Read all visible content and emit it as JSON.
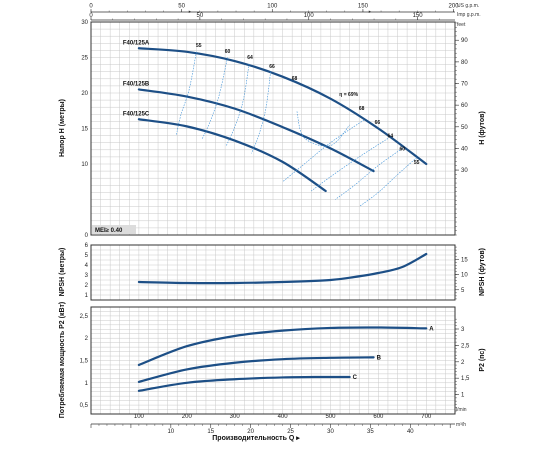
{
  "units": {
    "top_us": "US g.p.m.",
    "top_imp": "Imp g.p.m.",
    "top_feet": "feet",
    "bottom_lmin": "l/min",
    "bottom_m3h": "m³/h"
  },
  "axis_titles": {
    "h_left": "Напор H (метры)",
    "h_right": "H (футов)",
    "npsh_left": "NPSH (метры)",
    "npsh_right": "NPSH (футов)",
    "p2_left": "Потребляемая мощность P2 (кВт)",
    "p2_right": "P2 (пс)",
    "x_bottom": "Производительность Q"
  },
  "mei_label": "MEI≥ 0.40",
  "eta_label": "η = 69%",
  "ticks": {
    "us_gpm": [
      "0",
      "50",
      "100",
      "150",
      "200"
    ],
    "imp_gpm": [
      "0",
      "50",
      "100",
      "150"
    ],
    "lmin": [
      "100",
      "200",
      "300",
      "400",
      "500",
      "600",
      "700"
    ],
    "m3h": [
      "10",
      "15",
      "20",
      "25",
      "30",
      "35",
      "40"
    ],
    "h_m": [
      "10",
      "15",
      "20",
      "25",
      "30"
    ],
    "h_ft": [
      "30",
      "40",
      "50",
      "60",
      "70",
      "80",
      "90"
    ],
    "npsh_m": [
      "1",
      "2",
      "3",
      "4",
      "5",
      "6"
    ],
    "npsh_ft": [
      "5",
      "10",
      "15"
    ],
    "p2_kw": [
      "0,5",
      "1",
      "1,5",
      "2",
      "2,5"
    ],
    "p2_hp": [
      "1",
      "1,5",
      "2",
      "2,5",
      "3"
    ]
  },
  "chart_data": [
    {
      "type": "line",
      "x_unit": "l/min",
      "xlim": [
        0,
        760
      ],
      "ylim": [
        0,
        30
      ],
      "grid": true,
      "series": [
        {
          "name": "F40/125A",
          "x": [
            100,
            200,
            300,
            400,
            500,
            600,
            700
          ],
          "y": [
            26.3,
            25.8,
            24.5,
            22.3,
            19.2,
            15.0,
            10.0
          ]
        },
        {
          "name": "F40/125B",
          "x": [
            100,
            200,
            300,
            400,
            500,
            590
          ],
          "y": [
            20.5,
            19.5,
            17.8,
            15.2,
            12.2,
            9.0
          ]
        },
        {
          "name": "F40/125C",
          "x": [
            100,
            200,
            300,
            400,
            490
          ],
          "y": [
            16.3,
            15.3,
            13.3,
            10.3,
            6.2
          ]
        }
      ],
      "efficiency_labels": [
        "55",
        "60",
        "64",
        "66",
        "68",
        "η = 69%",
        "68",
        "66",
        "64",
        "60",
        "55"
      ]
    },
    {
      "type": "line",
      "x_unit": "l/min",
      "xlim": [
        0,
        760
      ],
      "ylim": [
        0.5,
        6
      ],
      "grid": true,
      "series": [
        {
          "x": [
            100,
            200,
            300,
            400,
            500,
            550,
            600,
            650,
            700
          ],
          "y": [
            2.3,
            2.2,
            2.2,
            2.3,
            2.5,
            2.8,
            3.2,
            3.8,
            5.1
          ]
        }
      ]
    },
    {
      "type": "line",
      "x_unit": "l/min",
      "xlim": [
        0,
        760
      ],
      "ylim": [
        0.3,
        2.7
      ],
      "grid": true,
      "series": [
        {
          "name": "A",
          "x": [
            100,
            200,
            300,
            400,
            500,
            600,
            700
          ],
          "y": [
            1.4,
            1.82,
            2.05,
            2.17,
            2.23,
            2.24,
            2.22
          ]
        },
        {
          "name": "B",
          "x": [
            100,
            200,
            300,
            400,
            500,
            590
          ],
          "y": [
            1.02,
            1.3,
            1.45,
            1.53,
            1.56,
            1.57
          ]
        },
        {
          "name": "C",
          "x": [
            100,
            200,
            300,
            400,
            480,
            540
          ],
          "y": [
            0.82,
            1.0,
            1.08,
            1.12,
            1.13,
            1.13
          ]
        }
      ]
    }
  ]
}
